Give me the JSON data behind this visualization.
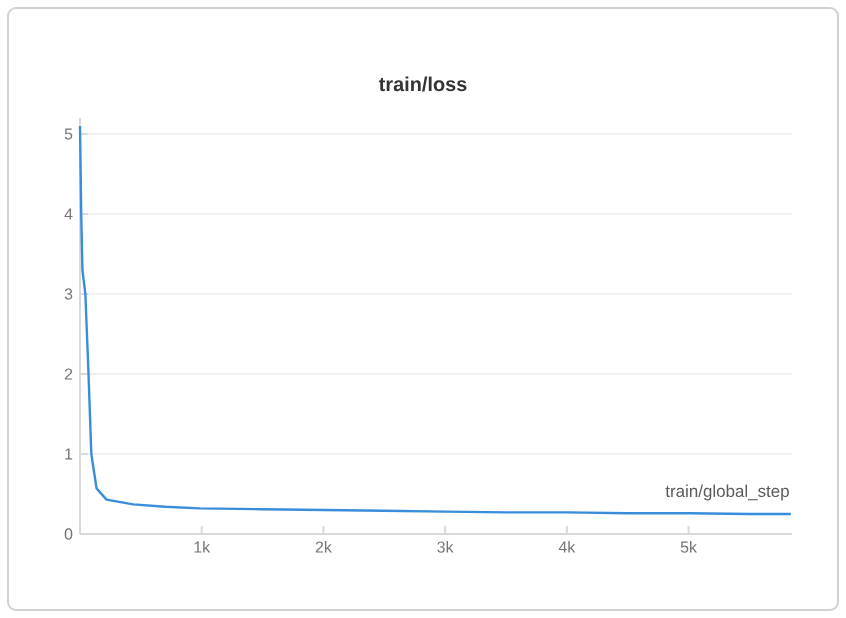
{
  "chart_data": {
    "type": "line",
    "title": "train/loss",
    "xlabel": "train/global_step",
    "color": "#3a8ddb",
    "x": [
      0,
      10,
      20,
      44,
      70,
      93,
      136,
      218,
      437,
      700,
      984,
      1500,
      2000,
      2500,
      3000,
      3500,
      4000,
      4500,
      5000,
      5500,
      5840
    ],
    "values": [
      5.1,
      4.0,
      3.3,
      3.0,
      2.0,
      1.0,
      0.57,
      0.43,
      0.37,
      0.34,
      0.32,
      0.31,
      0.3,
      0.29,
      0.28,
      0.27,
      0.27,
      0.26,
      0.26,
      0.25,
      0.25
    ],
    "xlim": [
      0,
      5850
    ],
    "ylim": [
      0,
      5.2
    ],
    "xticks": [
      {
        "value": 1000,
        "label": "1k"
      },
      {
        "value": 2000,
        "label": "2k"
      },
      {
        "value": 3000,
        "label": "3k"
      },
      {
        "value": 4000,
        "label": "4k"
      },
      {
        "value": 5000,
        "label": "5k"
      }
    ],
    "yticks": [
      0,
      1,
      2,
      3,
      4,
      5
    ],
    "grid": "y"
  }
}
